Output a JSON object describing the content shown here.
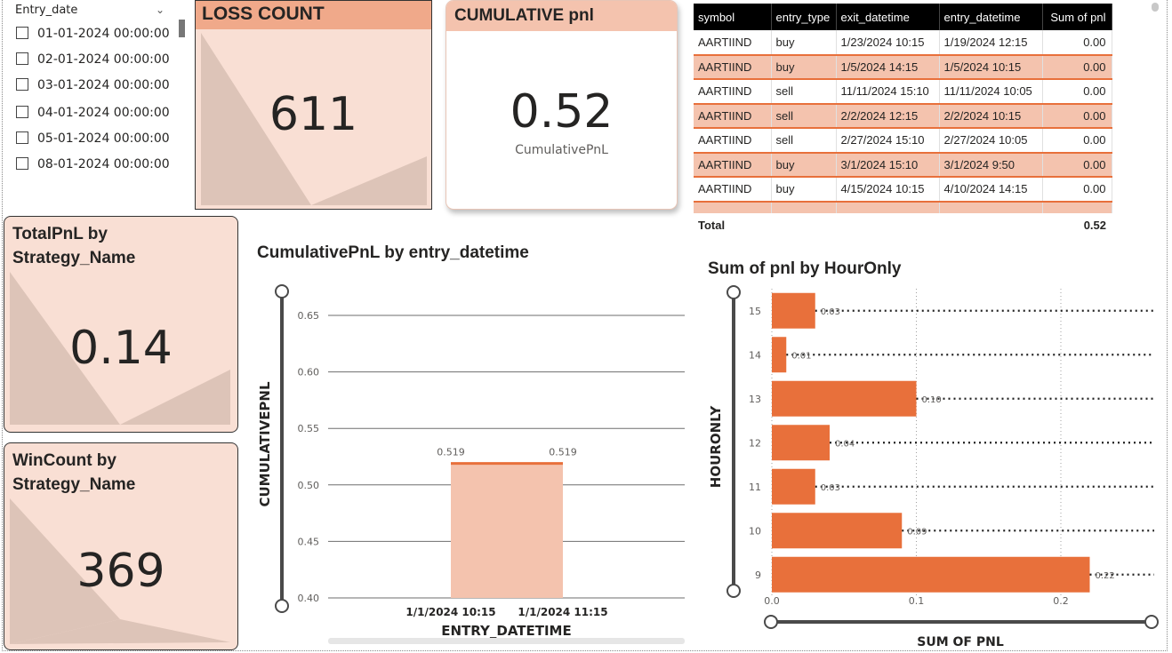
{
  "slicer": {
    "title": "Entry_date",
    "items": [
      "01-01-2024 00:00:00",
      "02-01-2024 00:00:00",
      "03-01-2024 00:00:00",
      "04-01-2024 00:00:00",
      "05-01-2024 00:00:00",
      "08-01-2024 00:00:00"
    ]
  },
  "cards": {
    "loss": {
      "title": "LOSS COUNT",
      "value": "611"
    },
    "cumulative": {
      "title": "CUMULATIVE pnl",
      "value": "0.52",
      "subtitle": "CumulativePnL"
    },
    "total_pnl": {
      "title": "TotalPnL by Strategy_Name",
      "value": "0.14"
    },
    "win_count": {
      "title": "WinCount by Strategy_Name",
      "value": "369"
    }
  },
  "table": {
    "columns": [
      "symbol",
      "entry_type",
      "exit_datetime",
      "entry_datetime",
      "Sum of pnl"
    ],
    "rows": [
      [
        "AARTIIND",
        "buy",
        "1/23/2024 10:15",
        "1/19/2024 12:15",
        "0.00"
      ],
      [
        "AARTIIND",
        "buy",
        "1/5/2024 14:15",
        "1/5/2024 10:15",
        "0.00"
      ],
      [
        "AARTIIND",
        "sell",
        "11/11/2024 15:10",
        "11/11/2024 10:05",
        "0.00"
      ],
      [
        "AARTIIND",
        "sell",
        "2/2/2024 12:15",
        "2/2/2024 10:15",
        "0.00"
      ],
      [
        "AARTIIND",
        "sell",
        "2/27/2024 15:10",
        "2/27/2024 10:05",
        "0.00"
      ],
      [
        "AARTIIND",
        "buy",
        "3/1/2024 15:10",
        "3/1/2024 9:50",
        "0.00"
      ],
      [
        "AARTIIND",
        "buy",
        "4/15/2024 10:15",
        "4/10/2024 14:15",
        "0.00"
      ]
    ],
    "total_label": "Total",
    "total_value": "0.52"
  },
  "colors": {
    "accent": "#e8703b",
    "area_fill": "#f4c3ae",
    "card_fill": "#f9dfd4",
    "card_band": "#f0a98a",
    "deco": "#ddc4b8"
  },
  "chart_data": [
    {
      "type": "area",
      "title": "CumulativePnL by entry_datetime",
      "xlabel": "ENTRY_DATETIME",
      "ylabel": "CUMULATIVEPNL",
      "categories": [
        "1/1/2024 10:15",
        "1/1/2024 11:15"
      ],
      "values": [
        0.519,
        0.519
      ],
      "data_labels": [
        "0.519",
        "0.519"
      ],
      "yticks": [
        "0.65",
        "0.60",
        "0.55",
        "0.50",
        "0.45",
        "0.40"
      ],
      "ylim": [
        0.4,
        0.65
      ],
      "grid": true
    },
    {
      "type": "bar",
      "orientation": "horizontal",
      "title": "Sum of pnl by HourOnly",
      "xlabel": "SUM OF PNL",
      "ylabel": "HOURONLY",
      "categories": [
        "15",
        "14",
        "13",
        "12",
        "11",
        "10",
        "9"
      ],
      "values": [
        0.03,
        0.01,
        0.1,
        0.04,
        0.03,
        0.09,
        0.22
      ],
      "data_labels": [
        "0.03",
        "0.01",
        "0.10",
        "0.04",
        "0.03",
        "0.09",
        "0.22"
      ],
      "xticks": [
        "0.0",
        "0.1",
        "0.2"
      ],
      "xlim": [
        0,
        0.2
      ],
      "grid": true
    }
  ]
}
